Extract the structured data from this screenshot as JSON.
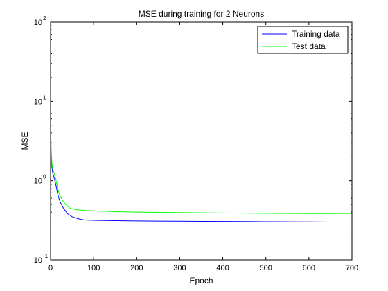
{
  "chart_data": {
    "type": "line",
    "title": "MSE during training for 2 Neurons",
    "xlabel": "Epoch",
    "ylabel": "MSE",
    "xlim": [
      0,
      700
    ],
    "ylim": [
      0.1,
      100
    ],
    "yscale": "log",
    "x_ticks": [
      0,
      100,
      200,
      300,
      400,
      500,
      600,
      700
    ],
    "y_tick_base": "10",
    "y_ticks": [
      {
        "value": 0.1,
        "exponent": "-1"
      },
      {
        "value": 1,
        "exponent": "0"
      },
      {
        "value": 10,
        "exponent": "1"
      },
      {
        "value": 100,
        "exponent": "2"
      }
    ],
    "grid": false,
    "legend_position": "top-right",
    "series": [
      {
        "name": "Training data",
        "color": "#0000ff",
        "x": [
          0,
          1,
          2,
          3,
          5,
          8,
          12,
          16,
          20,
          25,
          30,
          35,
          40,
          45,
          50,
          60,
          70,
          80,
          100,
          150,
          200,
          250,
          300,
          350,
          400,
          450,
          500,
          550,
          600,
          650,
          700
        ],
        "y": [
          3.6,
          2.5,
          1.9,
          1.5,
          1.25,
          1.1,
          0.9,
          0.7,
          0.58,
          0.5,
          0.45,
          0.41,
          0.38,
          0.365,
          0.35,
          0.335,
          0.325,
          0.318,
          0.315,
          0.312,
          0.31,
          0.308,
          0.307,
          0.306,
          0.305,
          0.304,
          0.303,
          0.302,
          0.301,
          0.3,
          0.3
        ]
      },
      {
        "name": "Test data",
        "color": "#00ff00",
        "x": [
          0,
          1,
          2,
          3,
          5,
          8,
          12,
          16,
          20,
          25,
          30,
          35,
          40,
          45,
          50,
          60,
          70,
          80,
          100,
          150,
          200,
          250,
          300,
          350,
          400,
          450,
          500,
          550,
          600,
          650,
          700
        ],
        "y": [
          4.4,
          3.0,
          2.2,
          1.7,
          1.4,
          1.25,
          1.05,
          0.82,
          0.68,
          0.6,
          0.54,
          0.5,
          0.47,
          0.45,
          0.44,
          0.43,
          0.425,
          0.42,
          0.415,
          0.405,
          0.4,
          0.397,
          0.395,
          0.392,
          0.39,
          0.388,
          0.386,
          0.385,
          0.384,
          0.384,
          0.385
        ]
      }
    ]
  }
}
